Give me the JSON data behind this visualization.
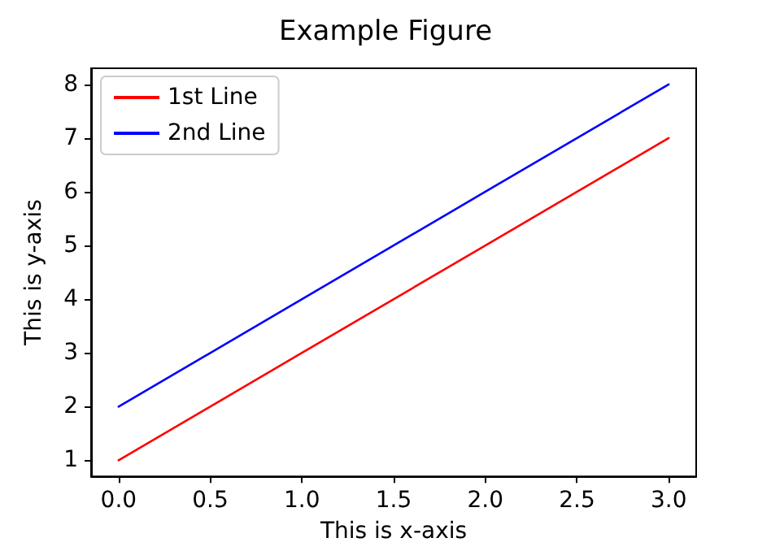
{
  "chart_data": {
    "type": "line",
    "title": "Example Figure",
    "xlabel": "This is x-axis",
    "ylabel": "This is y-axis",
    "x": [
      0,
      1,
      2,
      3
    ],
    "series": [
      {
        "name": "1st Line",
        "color": "#ff0000",
        "values": [
          1,
          3,
          5,
          7
        ]
      },
      {
        "name": "2nd Line",
        "color": "#0000ff",
        "values": [
          2,
          4,
          6,
          8
        ]
      }
    ],
    "xlim": [
      -0.15,
      3.15
    ],
    "xticks": [
      {
        "value": 0,
        "label": "0.0"
      },
      {
        "value": 0.5,
        "label": "0.5"
      },
      {
        "value": 1,
        "label": "1.0"
      },
      {
        "value": 1.5,
        "label": "1.5"
      },
      {
        "value": 2,
        "label": "2.0"
      },
      {
        "value": 2.5,
        "label": "2.5"
      },
      {
        "value": 3,
        "label": "3.0"
      }
    ],
    "ylim": [
      0.7,
      8.3
    ],
    "yticks": [
      1,
      2,
      3,
      4,
      5,
      6,
      7,
      8
    ],
    "legend": "top left",
    "grid": false,
    "marker": "none",
    "line_style": "solid"
  }
}
